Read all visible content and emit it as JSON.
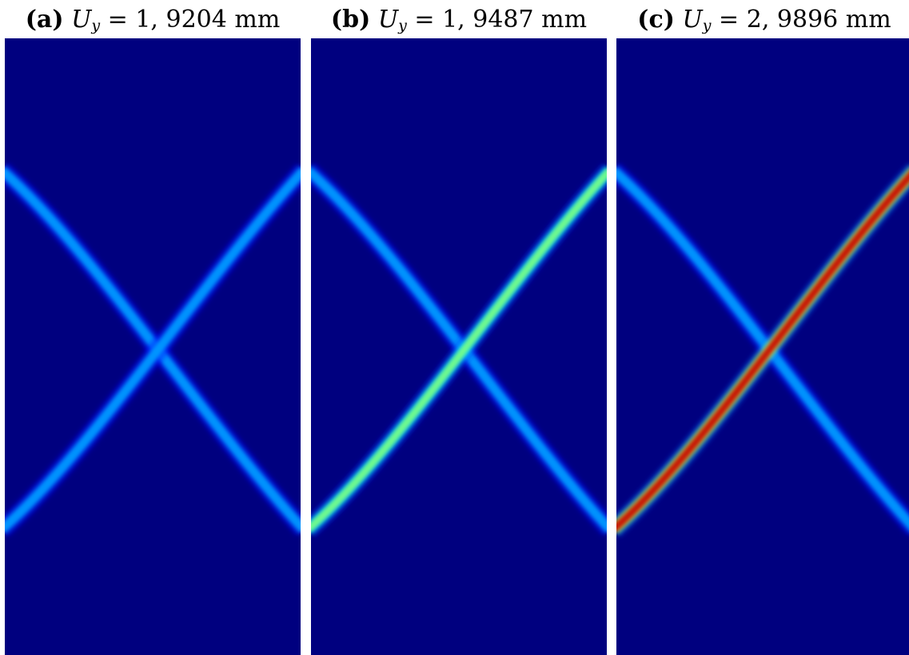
{
  "panels": [
    {
      "tag": "(a)",
      "var": "U",
      "sub": "y",
      "eq": " = ",
      "value": "1, 9204",
      "unit": "mm",
      "descending_intensity": 0.35,
      "ascending_intensity": 0.35
    },
    {
      "tag": "(b)",
      "var": "U",
      "sub": "y",
      "eq": " = ",
      "value": "1, 9487",
      "unit": "mm",
      "descending_intensity": 0.35,
      "ascending_intensity": 0.6
    },
    {
      "tag": "(c)",
      "var": "U",
      "sub": "y",
      "eq": " = ",
      "value": "2, 9896",
      "unit": "mm",
      "descending_intensity": 0.35,
      "ascending_intensity": 1.0
    }
  ],
  "colors": {
    "background": "#00007f",
    "colormap": "jet"
  }
}
